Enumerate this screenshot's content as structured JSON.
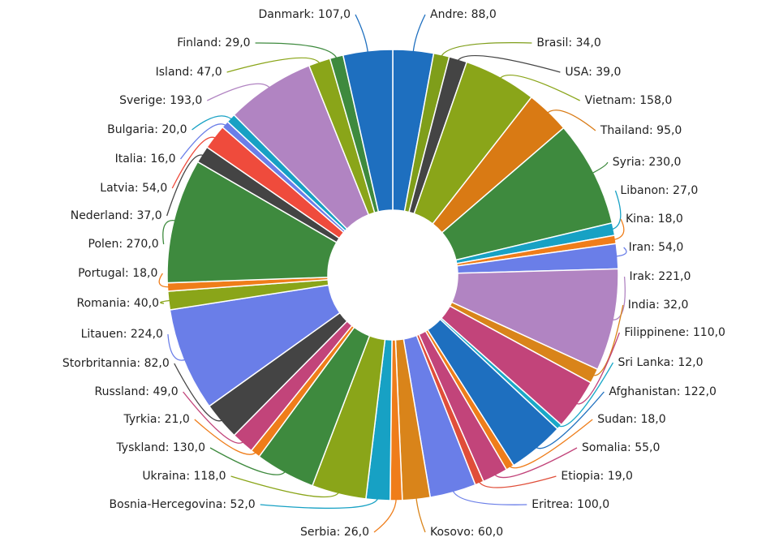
{
  "chart_data": {
    "type": "pie",
    "variant": "donut",
    "title": "",
    "label_format": "{name}: {value}",
    "legend": "none",
    "slices": [
      {
        "name": "Andre",
        "value": 88.0,
        "label": "Andre: 88,0",
        "color": "#1e6fbf"
      },
      {
        "name": "Brasil",
        "value": 34.0,
        "label": "Brasil: 34,0",
        "color": "#7f9e1a"
      },
      {
        "name": "USA",
        "value": 39.0,
        "label": "USA: 39,0",
        "color": "#444444"
      },
      {
        "name": "Vietnam",
        "value": 158.0,
        "label": "Vietnam: 158,0",
        "color": "#8aa519"
      },
      {
        "name": "Thailand",
        "value": 95.0,
        "label": "Thailand: 95,0",
        "color": "#d97a14"
      },
      {
        "name": "Syria",
        "value": 230.0,
        "label": "Syria: 230,0",
        "color": "#3e8a3e"
      },
      {
        "name": "Libanon",
        "value": 27.0,
        "label": "Libanon: 27,0",
        "color": "#17a1c4"
      },
      {
        "name": "Kina",
        "value": 18.0,
        "label": "Kina: 18,0",
        "color": "#ef7d1a"
      },
      {
        "name": "Iran",
        "value": 54.0,
        "label": "Iran: 54,0",
        "color": "#6a7ee8"
      },
      {
        "name": "Irak",
        "value": 221.0,
        "label": "Irak: 221,0",
        "color": "#b184c2"
      },
      {
        "name": "India",
        "value": 32.0,
        "label": "India: 32,0",
        "color": "#d9841a"
      },
      {
        "name": "Filippinene",
        "value": 110.0,
        "label": "Filippinene: 110,0",
        "color": "#c2447a"
      },
      {
        "name": "Sri Lanka",
        "value": 12.0,
        "label": "Sri Lanka: 12,0",
        "color": "#1aa8c8"
      },
      {
        "name": "Afghanistan",
        "value": 122.0,
        "label": "Afghanistan: 122,0",
        "color": "#1e6fbf"
      },
      {
        "name": "Sudan",
        "value": 18.0,
        "label": "Sudan: 18,0",
        "color": "#ef7d1a"
      },
      {
        "name": "Somalia",
        "value": 55.0,
        "label": "Somalia: 55,0",
        "color": "#c2447a"
      },
      {
        "name": "Etiopia",
        "value": 19.0,
        "label": "Etiopia: 19,0",
        "color": "#e04e39"
      },
      {
        "name": "Eritrea",
        "value": 100.0,
        "label": "Eritrea: 100,0",
        "color": "#6a7ee8"
      },
      {
        "name": "Kosovo",
        "value": 60.0,
        "label": "Kosovo: 60,0",
        "color": "#d9841a"
      },
      {
        "name": "Serbia",
        "value": 26.0,
        "label": "Serbia: 26,0",
        "color": "#ef7d1a"
      },
      {
        "name": "Bosnia-Hercegovina",
        "value": 52.0,
        "label": "Bosnia-Hercegovina: 52,0",
        "color": "#17a1c4"
      },
      {
        "name": "Ukraina",
        "value": 118.0,
        "label": "Ukraina: 118,0",
        "color": "#8aa519"
      },
      {
        "name": "Tyskland",
        "value": 130.0,
        "label": "Tyskland: 130,0",
        "color": "#3e8a3e"
      },
      {
        "name": "Tyrkia",
        "value": 21.0,
        "label": "Tyrkia: 21,0",
        "color": "#ef7d1a"
      },
      {
        "name": "Russland",
        "value": 49.0,
        "label": "Russland: 49,0",
        "color": "#c2447a"
      },
      {
        "name": "Storbritannia",
        "value": 82.0,
        "label": "Storbritannia: 82,0",
        "color": "#444444"
      },
      {
        "name": "Litauen",
        "value": 224.0,
        "label": "Litauen: 224,0",
        "color": "#6a7ee8"
      },
      {
        "name": "Romania",
        "value": 40.0,
        "label": "Romania: 40,0",
        "color": "#8aa519"
      },
      {
        "name": "Portugal",
        "value": 18.0,
        "label": "Portugal: 18,0",
        "color": "#ef7d1a"
      },
      {
        "name": "Polen",
        "value": 270.0,
        "label": "Polen: 270,0",
        "color": "#3e8a3e"
      },
      {
        "name": "Nederland",
        "value": 37.0,
        "label": "Nederland: 37,0",
        "color": "#444444"
      },
      {
        "name": "Latvia",
        "value": 54.0,
        "label": "Latvia: 54,0",
        "color": "#ef4b3c"
      },
      {
        "name": "Italia",
        "value": 16.0,
        "label": "Italia: 16,0",
        "color": "#6a7ee8"
      },
      {
        "name": "Bulgaria",
        "value": 20.0,
        "label": "Bulgaria: 20,0",
        "color": "#17a1c4"
      },
      {
        "name": "Sverige",
        "value": 193.0,
        "label": "Sverige: 193,0",
        "color": "#b184c2"
      },
      {
        "name": "Island",
        "value": 47.0,
        "label": "Island: 47,0",
        "color": "#8aa519"
      },
      {
        "name": "Finland",
        "value": 29.0,
        "label": "Finland: 29,0",
        "color": "#3e8a3e"
      },
      {
        "name": "Danmark",
        "value": 107.0,
        "label": "Danmark: 107,0",
        "color": "#1e6fbf"
      }
    ]
  }
}
